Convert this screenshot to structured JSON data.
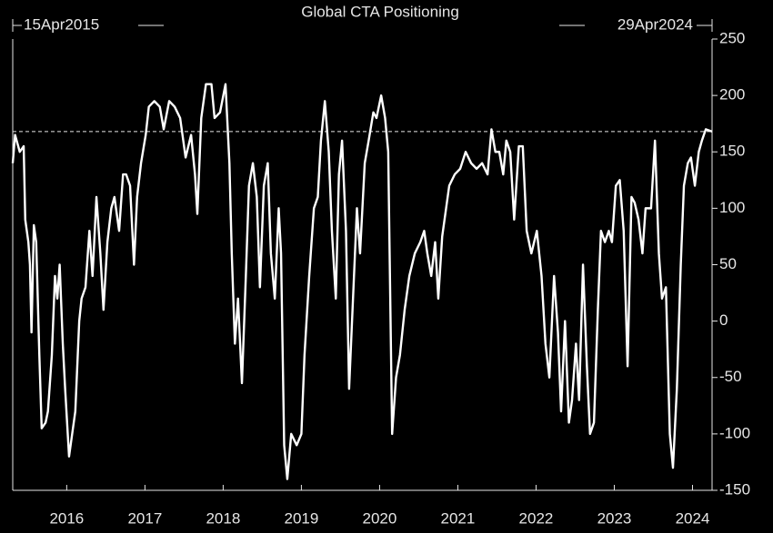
{
  "chart_data": {
    "type": "line",
    "title": "Global CTA Positioning",
    "start_label": "15Apr2015",
    "end_label": "29Apr2024",
    "xlim": [
      2015.31,
      2024.25
    ],
    "xticks": [
      2016,
      2017,
      2018,
      2019,
      2020,
      2021,
      2022,
      2023,
      2024
    ],
    "ylim": [
      -150,
      250
    ],
    "yticks": [
      250,
      200,
      150,
      100,
      50,
      0,
      -50,
      -100,
      -150
    ],
    "reference_line": 168,
    "series": [
      {
        "color": "#ffffff",
        "x": [
          2015.31,
          2015.34,
          2015.4,
          2015.45,
          2015.47,
          2015.51,
          2015.53,
          2015.55,
          2015.58,
          2015.61,
          2015.65,
          2015.68,
          2015.73,
          2015.76,
          2015.81,
          2015.85,
          2015.88,
          2015.91,
          2015.95,
          2015.98,
          2016.03,
          2016.07,
          2016.11,
          2016.16,
          2016.19,
          2016.24,
          2016.29,
          2016.33,
          2016.38,
          2016.43,
          2016.47,
          2016.52,
          2016.57,
          2016.61,
          2016.67,
          2016.72,
          2016.76,
          2016.81,
          2016.86,
          2016.9,
          2016.95,
          2017.01,
          2017.05,
          2017.12,
          2017.19,
          2017.24,
          2017.31,
          2017.38,
          2017.45,
          2017.52,
          2017.59,
          2017.64,
          2017.67,
          2017.72,
          2017.78,
          2017.85,
          2017.89,
          2017.96,
          2018.03,
          2018.08,
          2018.11,
          2018.15,
          2018.19,
          2018.24,
          2018.29,
          2018.33,
          2018.38,
          2018.43,
          2018.47,
          2018.52,
          2018.57,
          2018.61,
          2018.66,
          2018.71,
          2018.74,
          2018.78,
          2018.82,
          2018.87,
          2018.94,
          2019.0,
          2019.04,
          2019.1,
          2019.16,
          2019.21,
          2019.25,
          2019.3,
          2019.35,
          2019.39,
          2019.44,
          2019.48,
          2019.52,
          2019.57,
          2019.61,
          2019.66,
          2019.71,
          2019.75,
          2019.81,
          2019.86,
          2019.92,
          2019.96,
          2020.02,
          2020.07,
          2020.11,
          2020.16,
          2020.21,
          2020.26,
          2020.32,
          2020.38,
          2020.45,
          2020.52,
          2020.57,
          2020.61,
          2020.66,
          2020.71,
          2020.75,
          2020.8,
          2020.85,
          2020.89,
          2020.96,
          2021.03,
          2021.1,
          2021.17,
          2021.24,
          2021.31,
          2021.38,
          2021.43,
          2021.48,
          2021.53,
          2021.58,
          2021.62,
          2021.67,
          2021.72,
          2021.78,
          2021.83,
          2021.88,
          2021.94,
          2022.01,
          2022.07,
          2022.12,
          2022.17,
          2022.23,
          2022.28,
          2022.32,
          2022.37,
          2022.42,
          2022.46,
          2022.51,
          2022.55,
          2022.6,
          2022.65,
          2022.69,
          2022.74,
          2022.79,
          2022.83,
          2022.88,
          2022.93,
          2022.97,
          2023.02,
          2023.07,
          2023.12,
          2023.17,
          2023.22,
          2023.26,
          2023.31,
          2023.36,
          2023.4,
          2023.47,
          2023.52,
          2023.57,
          2023.61,
          2023.66,
          2023.71,
          2023.75,
          2023.8,
          2023.85,
          2023.89,
          2023.94,
          2023.98,
          2024.03,
          2024.08,
          2024.12,
          2024.17,
          2024.25
        ],
        "values": [
          140,
          165,
          150,
          155,
          90,
          70,
          50,
          -10,
          85,
          70,
          -30,
          -95,
          -90,
          -80,
          -30,
          40,
          20,
          50,
          -20,
          -60,
          -120,
          -100,
          -80,
          0,
          20,
          30,
          80,
          40,
          110,
          60,
          10,
          70,
          100,
          110,
          80,
          130,
          130,
          120,
          50,
          110,
          140,
          165,
          190,
          195,
          190,
          170,
          195,
          190,
          180,
          145,
          165,
          130,
          95,
          180,
          210,
          210,
          180,
          185,
          210,
          140,
          60,
          -20,
          20,
          -55,
          40,
          120,
          140,
          110,
          30,
          120,
          140,
          60,
          20,
          100,
          60,
          -110,
          -140,
          -100,
          -110,
          -100,
          -30,
          40,
          100,
          110,
          160,
          195,
          150,
          80,
          20,
          130,
          160,
          80,
          -60,
          20,
          100,
          60,
          140,
          160,
          185,
          180,
          200,
          180,
          150,
          -100,
          -50,
          -30,
          10,
          40,
          60,
          70,
          80,
          60,
          40,
          70,
          20,
          75,
          100,
          120,
          130,
          135,
          150,
          140,
          135,
          140,
          130,
          170,
          150,
          150,
          130,
          160,
          150,
          90,
          155,
          155,
          80,
          60,
          80,
          40,
          -20,
          -50,
          40,
          -10,
          -80,
          0,
          -90,
          -70,
          -20,
          -70,
          50,
          -40,
          -100,
          -90,
          10,
          80,
          70,
          80,
          70,
          120,
          125,
          80,
          -40,
          110,
          105,
          90,
          60,
          100,
          100,
          160,
          60,
          20,
          30,
          -100,
          -130,
          -60,
          50,
          120,
          140,
          145,
          120,
          150,
          160,
          170,
          168
        ]
      }
    ]
  }
}
